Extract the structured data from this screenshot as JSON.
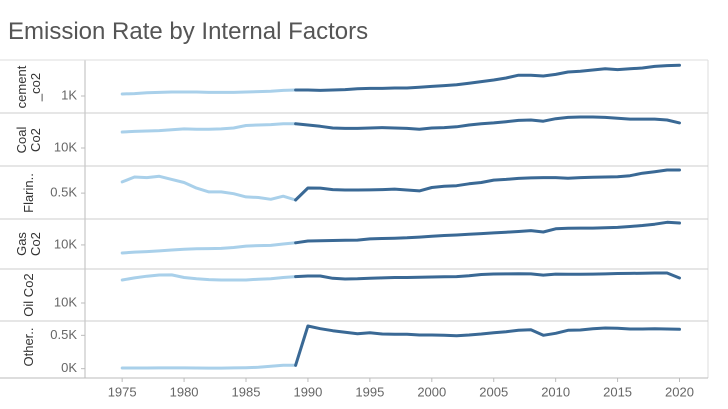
{
  "chart_data": {
    "type": "line",
    "title": "Emission Rate by Internal Factors",
    "x": [
      1975,
      1976,
      1977,
      1978,
      1979,
      1980,
      1981,
      1982,
      1983,
      1984,
      1985,
      1986,
      1987,
      1988,
      1989,
      1990,
      1991,
      1992,
      1993,
      1994,
      1995,
      1996,
      1997,
      1998,
      1999,
      2000,
      2001,
      2002,
      2003,
      2004,
      2005,
      2006,
      2007,
      2008,
      2009,
      2010,
      2011,
      2012,
      2013,
      2014,
      2015,
      2016,
      2017,
      2018,
      2019,
      2020
    ],
    "xlim": [
      1972,
      2022.3
    ],
    "xticks": [
      1975,
      1980,
      1985,
      1990,
      1995,
      2000,
      2005,
      2010,
      2015,
      2020
    ],
    "color": "#3a6995",
    "early_color": "#a9d0ea",
    "early_until": 1989,
    "series": [
      {
        "name": "cement _co2",
        "ylim": [
          800,
          1425
        ],
        "yticks": [
          {
            "value": 1000,
            "label": "1K"
          }
        ],
        "values": [
          1025,
          1030,
          1040,
          1045,
          1050,
          1050,
          1050,
          1045,
          1045,
          1045,
          1050,
          1055,
          1060,
          1070,
          1075,
          1075,
          1070,
          1075,
          1080,
          1090,
          1095,
          1095,
          1100,
          1100,
          1110,
          1120,
          1130,
          1140,
          1160,
          1180,
          1200,
          1225,
          1260,
          1260,
          1250,
          1270,
          1300,
          1310,
          1325,
          1340,
          1330,
          1340,
          1350,
          1370,
          1380,
          1385
        ]
      },
      {
        "name": "Coal Co2",
        "ylim": [
          8000,
          14000
        ],
        "yticks": [
          {
            "value": 10000,
            "label": "10K"
          }
        ],
        "values": [
          11880,
          11950,
          12000,
          12050,
          12150,
          12250,
          12200,
          12200,
          12250,
          12350,
          12650,
          12700,
          12750,
          12850,
          12850,
          12700,
          12550,
          12350,
          12300,
          12300,
          12350,
          12400,
          12350,
          12300,
          12200,
          12350,
          12400,
          12500,
          12700,
          12850,
          12950,
          13100,
          13250,
          13300,
          13150,
          13450,
          13600,
          13650,
          13650,
          13600,
          13500,
          13400,
          13400,
          13400,
          13300,
          12950
        ]
      },
      {
        "name": "Flarin..",
        "ylim": [
          300,
          710
        ],
        "yticks": [
          {
            "value": 500,
            "label": "0.5K"
          }
        ],
        "values": [
          590,
          630,
          625,
          635,
          610,
          585,
          540,
          510,
          510,
          495,
          470,
          465,
          450,
          475,
          445,
          541,
          540,
          528,
          525,
          525,
          526,
          528,
          532,
          525,
          518,
          545,
          555,
          560,
          575,
          585,
          605,
          610,
          618,
          622,
          625,
          625,
          620,
          625,
          628,
          630,
          632,
          640,
          660,
          672,
          686,
          686
        ]
      },
      {
        "name": "Gas Co2",
        "ylim": [
          5000,
          15400
        ],
        "yticks": [
          {
            "value": 10000,
            "label": "10K"
          }
        ],
        "values": [
          8250,
          8450,
          8550,
          8700,
          8900,
          9050,
          9150,
          9200,
          9250,
          9450,
          9750,
          9850,
          9900,
          10200,
          10450,
          10850,
          10900,
          10950,
          11000,
          11050,
          11300,
          11400,
          11450,
          11550,
          11700,
          11900,
          12050,
          12150,
          12300,
          12450,
          12600,
          12750,
          12900,
          13100,
          12800,
          13500,
          13600,
          13650,
          13650,
          13700,
          13800,
          14000,
          14200,
          14500,
          14900,
          14750
        ]
      },
      {
        "name": "Oil Co2",
        "ylim": [
          8000,
          13880
        ],
        "yticks": [
          {
            "value": 10000,
            "label": "10K"
          }
        ],
        "values": [
          12700,
          12950,
          13150,
          13290,
          13300,
          13000,
          12850,
          12750,
          12700,
          12700,
          12700,
          12800,
          12850,
          13000,
          13100,
          13170,
          13180,
          12900,
          12820,
          12850,
          12900,
          12950,
          13000,
          13000,
          13030,
          13060,
          13080,
          13100,
          13200,
          13350,
          13410,
          13420,
          13440,
          13420,
          13280,
          13400,
          13380,
          13390,
          13400,
          13420,
          13470,
          13480,
          13500,
          13530,
          13530,
          12940
        ]
      },
      {
        "name": "Other..",
        "ylim": [
          -50,
          700
        ],
        "yticks": [
          {
            "value": 500,
            "label": "0.5K"
          },
          {
            "value": 0,
            "label": "0K"
          }
        ],
        "values": [
          10,
          10,
          10,
          12,
          12,
          12,
          10,
          8,
          8,
          12,
          15,
          20,
          35,
          50,
          50,
          640,
          600,
          570,
          545,
          525,
          540,
          520,
          515,
          515,
          505,
          505,
          500,
          495,
          505,
          520,
          540,
          555,
          575,
          585,
          500,
          530,
          575,
          580,
          600,
          610,
          605,
          595,
          595,
          600,
          595,
          590
        ]
      }
    ]
  }
}
